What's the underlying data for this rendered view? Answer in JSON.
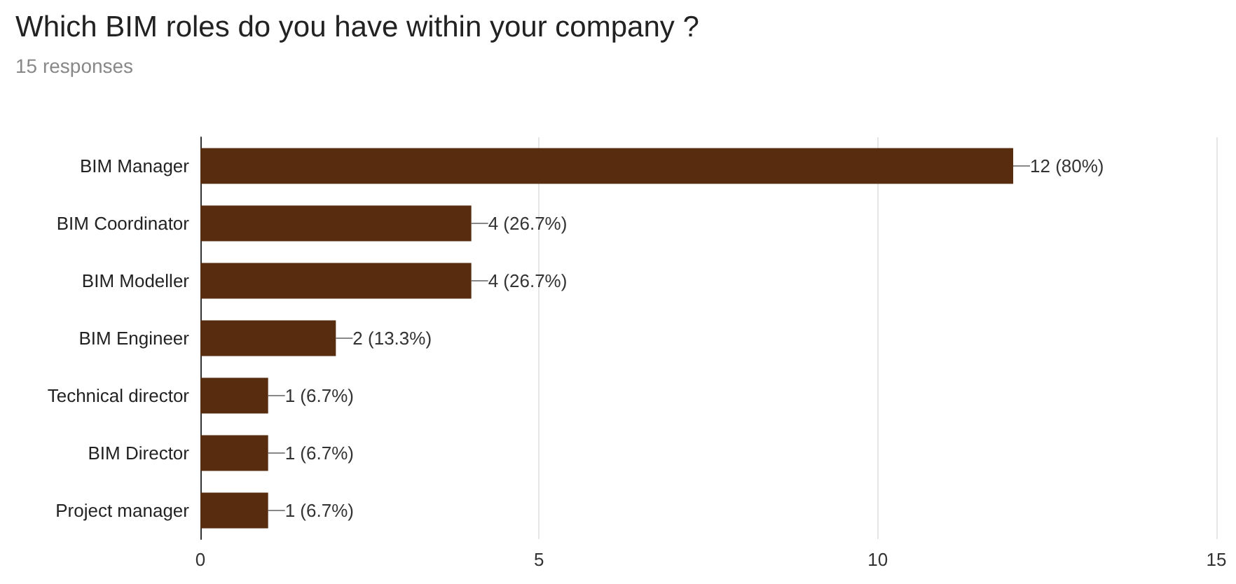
{
  "chart_data": {
    "type": "bar",
    "orientation": "horizontal",
    "title": "Which BIM roles do you have within your company ?",
    "subtitle": "15 responses",
    "categories": [
      "BIM Manager",
      "BIM Coordinator",
      "BIM Modeller",
      "BIM Engineer",
      "Technical director",
      "BIM Director",
      "Project manager"
    ],
    "values": [
      12,
      4,
      4,
      2,
      1,
      1,
      1
    ],
    "value_labels": [
      "12 (80%)",
      "4 (26.7%)",
      "4 (26.7%)",
      "2 (13.3%)",
      "1 (6.7%)",
      "1 (6.7%)",
      "1 (6.7%)"
    ],
    "color": "#582d0f",
    "xlim": [
      0,
      15
    ],
    "xticks": [
      0,
      5,
      10,
      15
    ],
    "grid": "x"
  }
}
